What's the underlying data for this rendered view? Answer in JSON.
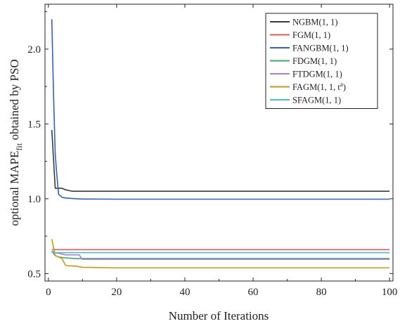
{
  "chart_data": {
    "type": "line",
    "xlabel": "Number of Iterations",
    "ylabel": "optional MAPE",
    "ylabel_sub": "fit",
    "ylabel_suffix": " obtained by PSO",
    "xlim": [
      -1,
      101
    ],
    "ylim": [
      0.45,
      2.3
    ],
    "xticks": [
      0,
      20,
      40,
      60,
      80,
      100
    ],
    "yticks": [
      0.5,
      1.0,
      1.5,
      2.0
    ],
    "xtick_labels": [
      "0",
      "20",
      "40",
      "60",
      "80",
      "100"
    ],
    "ytick_labels": [
      "0.5",
      "1.0",
      "1.5",
      "2.0"
    ],
    "grid": false,
    "legend_position": "top-right",
    "series": [
      {
        "name": "NGBM(1, 1)",
        "color": "#3a3a3a",
        "points": [
          [
            1,
            1.46
          ],
          [
            2,
            1.07
          ],
          [
            3,
            1.07
          ],
          [
            4,
            1.07
          ],
          [
            5,
            1.06
          ],
          [
            7,
            1.05
          ],
          [
            10,
            1.05
          ],
          [
            100,
            1.05
          ]
        ]
      },
      {
        "name": "FGM(1, 1)",
        "color": "#e05a5a",
        "points": [
          [
            1,
            0.66
          ],
          [
            2,
            0.66
          ],
          [
            100,
            0.66
          ]
        ]
      },
      {
        "name": "FANGBM(1, 1)",
        "color": "#2e63c4",
        "points": [
          [
            1,
            2.2
          ],
          [
            1.5,
            1.7
          ],
          [
            2,
            1.3
          ],
          [
            2.5,
            1.15
          ],
          [
            3,
            1.03
          ],
          [
            4,
            1.01
          ],
          [
            5,
            1.005
          ],
          [
            8,
            1.0
          ],
          [
            10,
            0.998
          ],
          [
            20,
            0.997
          ],
          [
            100,
            0.997
          ]
        ]
      },
      {
        "name": "FDGM(1, 1)",
        "color": "#3aa86a",
        "points": [
          [
            1,
            0.65
          ],
          [
            2,
            0.62
          ],
          [
            3,
            0.61
          ],
          [
            5,
            0.605
          ],
          [
            8,
            0.6
          ],
          [
            10,
            0.6
          ],
          [
            100,
            0.6
          ]
        ]
      },
      {
        "name": "FTDGM(1, 1)",
        "color": "#a87fd6",
        "points": [
          [
            1,
            0.65
          ],
          [
            2,
            0.64
          ],
          [
            3,
            0.635
          ],
          [
            4,
            0.63
          ],
          [
            5,
            0.625
          ],
          [
            9,
            0.625
          ],
          [
            10,
            0.595
          ],
          [
            100,
            0.595
          ]
        ]
      },
      {
        "name": "FAGM(1, 1, t",
        "name_sup": "a",
        "name_suffix": ")",
        "color": "#c89a10",
        "points": [
          [
            1,
            0.73
          ],
          [
            2,
            0.62
          ],
          [
            3,
            0.61
          ],
          [
            4,
            0.6
          ],
          [
            5,
            0.555
          ],
          [
            6,
            0.552
          ],
          [
            8,
            0.55
          ],
          [
            10,
            0.542
          ],
          [
            15,
            0.54
          ],
          [
            20,
            0.538
          ],
          [
            100,
            0.538
          ]
        ]
      },
      {
        "name": "SFAGM(1, 1)",
        "color": "#3cc7c2",
        "points": [
          [
            1,
            0.64
          ],
          [
            2,
            0.64
          ],
          [
            100,
            0.64
          ]
        ]
      }
    ]
  }
}
